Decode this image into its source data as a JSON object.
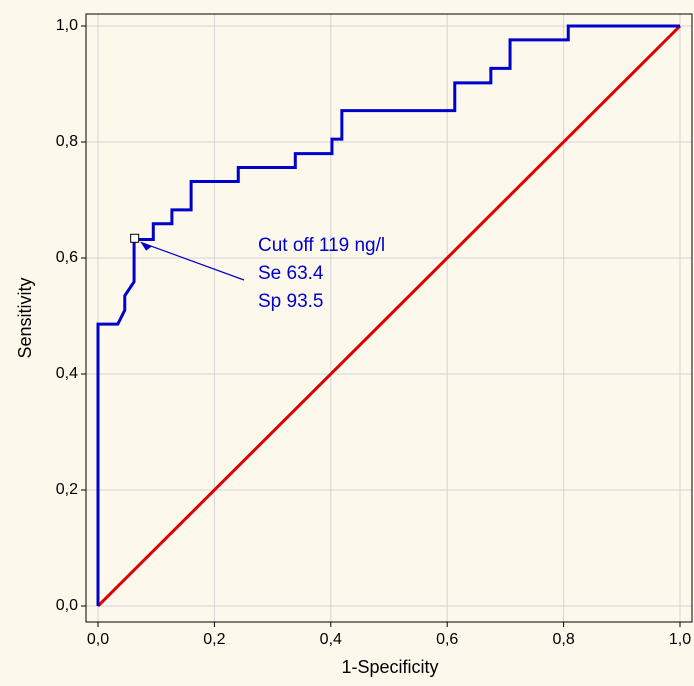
{
  "chart_data": {
    "type": "line",
    "xlabel": "1-Specificity",
    "ylabel": "Sensitivity",
    "xlim": [
      0,
      1
    ],
    "ylim": [
      0,
      1
    ],
    "xticks": [
      {
        "value": 0,
        "label": "0,0"
      },
      {
        "value": 0.2,
        "label": "0,2"
      },
      {
        "value": 0.4,
        "label": "0,4"
      },
      {
        "value": 0.6,
        "label": "0,6"
      },
      {
        "value": 0.8,
        "label": "0,8"
      },
      {
        "value": 1,
        "label": "1,0"
      }
    ],
    "yticks": [
      {
        "value": 0,
        "label": "0,0"
      },
      {
        "value": 0.2,
        "label": "0,2"
      },
      {
        "value": 0.4,
        "label": "0,4"
      },
      {
        "value": 0.6,
        "label": "0,6"
      },
      {
        "value": 0.8,
        "label": "0,8"
      },
      {
        "value": 1,
        "label": "1,0"
      }
    ],
    "grid": true,
    "series": [
      {
        "color": "#0000cc",
        "x": [
          0,
          0,
          0.034,
          0.046,
          0.046,
          0.062,
          0.062,
          0.095,
          0.095,
          0.127,
          0.127,
          0.16,
          0.16,
          0.241,
          0.241,
          0.339,
          0.339,
          0.402,
          0.402,
          0.419,
          0.419,
          0.613,
          0.613,
          0.675,
          0.675,
          0.708,
          0.708,
          0.808,
          0.808,
          1
        ],
        "values": [
          0,
          0.486,
          0.486,
          0.51,
          0.535,
          0.559,
          0.632,
          0.632,
          0.659,
          0.659,
          0.683,
          0.683,
          0.732,
          0.732,
          0.756,
          0.756,
          0.78,
          0.78,
          0.805,
          0.805,
          0.854,
          0.854,
          0.902,
          0.902,
          0.927,
          0.927,
          0.976,
          0.976,
          1,
          1
        ]
      },
      {
        "color": "#dd0000",
        "x": [
          0,
          1
        ],
        "values": [
          0,
          1
        ]
      }
    ],
    "annotation": {
      "lines": [
        "Cut off 119 ng/l",
        "Se 63.4",
        "Sp 93.5"
      ],
      "color": "#0000cc",
      "x": 0.063,
      "y": 0.634
    }
  }
}
